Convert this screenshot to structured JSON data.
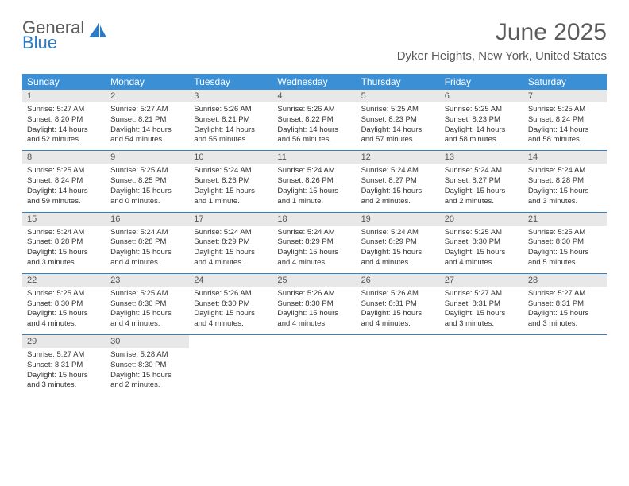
{
  "logo": {
    "word1": "General",
    "word2": "Blue"
  },
  "title": "June 2025",
  "location": "Dyker Heights, New York, United States",
  "colors": {
    "header_bg": "#3b8fd4",
    "header_text": "#ffffff",
    "daynum_bg": "#e8e8e8",
    "border": "#3b7fb8",
    "logo_gray": "#5a5a5a",
    "logo_blue": "#2d7bc4"
  },
  "weekdays": [
    "Sunday",
    "Monday",
    "Tuesday",
    "Wednesday",
    "Thursday",
    "Friday",
    "Saturday"
  ],
  "weeks": [
    [
      {
        "n": "1",
        "sr": "5:27 AM",
        "ss": "8:20 PM",
        "dl": "14 hours and 52 minutes."
      },
      {
        "n": "2",
        "sr": "5:27 AM",
        "ss": "8:21 PM",
        "dl": "14 hours and 54 minutes."
      },
      {
        "n": "3",
        "sr": "5:26 AM",
        "ss": "8:21 PM",
        "dl": "14 hours and 55 minutes."
      },
      {
        "n": "4",
        "sr": "5:26 AM",
        "ss": "8:22 PM",
        "dl": "14 hours and 56 minutes."
      },
      {
        "n": "5",
        "sr": "5:25 AM",
        "ss": "8:23 PM",
        "dl": "14 hours and 57 minutes."
      },
      {
        "n": "6",
        "sr": "5:25 AM",
        "ss": "8:23 PM",
        "dl": "14 hours and 58 minutes."
      },
      {
        "n": "7",
        "sr": "5:25 AM",
        "ss": "8:24 PM",
        "dl": "14 hours and 58 minutes."
      }
    ],
    [
      {
        "n": "8",
        "sr": "5:25 AM",
        "ss": "8:24 PM",
        "dl": "14 hours and 59 minutes."
      },
      {
        "n": "9",
        "sr": "5:25 AM",
        "ss": "8:25 PM",
        "dl": "15 hours and 0 minutes."
      },
      {
        "n": "10",
        "sr": "5:24 AM",
        "ss": "8:26 PM",
        "dl": "15 hours and 1 minute."
      },
      {
        "n": "11",
        "sr": "5:24 AM",
        "ss": "8:26 PM",
        "dl": "15 hours and 1 minute."
      },
      {
        "n": "12",
        "sr": "5:24 AM",
        "ss": "8:27 PM",
        "dl": "15 hours and 2 minutes."
      },
      {
        "n": "13",
        "sr": "5:24 AM",
        "ss": "8:27 PM",
        "dl": "15 hours and 2 minutes."
      },
      {
        "n": "14",
        "sr": "5:24 AM",
        "ss": "8:28 PM",
        "dl": "15 hours and 3 minutes."
      }
    ],
    [
      {
        "n": "15",
        "sr": "5:24 AM",
        "ss": "8:28 PM",
        "dl": "15 hours and 3 minutes."
      },
      {
        "n": "16",
        "sr": "5:24 AM",
        "ss": "8:28 PM",
        "dl": "15 hours and 4 minutes."
      },
      {
        "n": "17",
        "sr": "5:24 AM",
        "ss": "8:29 PM",
        "dl": "15 hours and 4 minutes."
      },
      {
        "n": "18",
        "sr": "5:24 AM",
        "ss": "8:29 PM",
        "dl": "15 hours and 4 minutes."
      },
      {
        "n": "19",
        "sr": "5:24 AM",
        "ss": "8:29 PM",
        "dl": "15 hours and 4 minutes."
      },
      {
        "n": "20",
        "sr": "5:25 AM",
        "ss": "8:30 PM",
        "dl": "15 hours and 4 minutes."
      },
      {
        "n": "21",
        "sr": "5:25 AM",
        "ss": "8:30 PM",
        "dl": "15 hours and 5 minutes."
      }
    ],
    [
      {
        "n": "22",
        "sr": "5:25 AM",
        "ss": "8:30 PM",
        "dl": "15 hours and 4 minutes."
      },
      {
        "n": "23",
        "sr": "5:25 AM",
        "ss": "8:30 PM",
        "dl": "15 hours and 4 minutes."
      },
      {
        "n": "24",
        "sr": "5:26 AM",
        "ss": "8:30 PM",
        "dl": "15 hours and 4 minutes."
      },
      {
        "n": "25",
        "sr": "5:26 AM",
        "ss": "8:30 PM",
        "dl": "15 hours and 4 minutes."
      },
      {
        "n": "26",
        "sr": "5:26 AM",
        "ss": "8:31 PM",
        "dl": "15 hours and 4 minutes."
      },
      {
        "n": "27",
        "sr": "5:27 AM",
        "ss": "8:31 PM",
        "dl": "15 hours and 3 minutes."
      },
      {
        "n": "28",
        "sr": "5:27 AM",
        "ss": "8:31 PM",
        "dl": "15 hours and 3 minutes."
      }
    ],
    [
      {
        "n": "29",
        "sr": "5:27 AM",
        "ss": "8:31 PM",
        "dl": "15 hours and 3 minutes."
      },
      {
        "n": "30",
        "sr": "5:28 AM",
        "ss": "8:30 PM",
        "dl": "15 hours and 2 minutes."
      },
      null,
      null,
      null,
      null,
      null
    ]
  ],
  "labels": {
    "sunrise": "Sunrise: ",
    "sunset": "Sunset: ",
    "daylight": "Daylight: "
  }
}
